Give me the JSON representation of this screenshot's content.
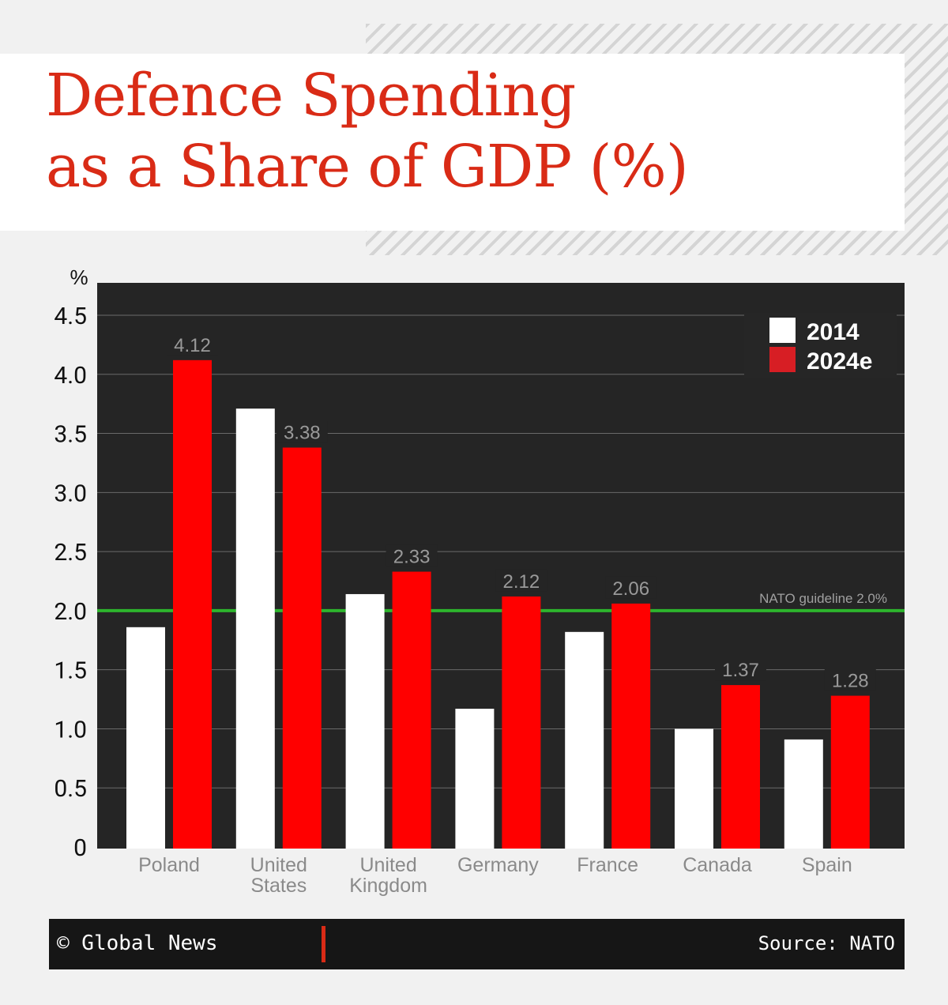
{
  "title_line1": "Defence Spending",
  "title_line2": "as a Share of GDP (%)",
  "chart_data": {
    "type": "bar",
    "categories": [
      "Poland",
      "United States",
      "United Kingdom",
      "Germany",
      "France",
      "Canada",
      "Spain"
    ],
    "category_lines": [
      [
        "Poland"
      ],
      [
        "United",
        "States"
      ],
      [
        "United",
        "Kingdom"
      ],
      [
        "Germany"
      ],
      [
        "France"
      ],
      [
        "Canada"
      ],
      [
        "Spain"
      ]
    ],
    "series": [
      {
        "name": "2014",
        "color": "#ffffff",
        "values": [
          1.86,
          3.71,
          2.14,
          1.17,
          1.82,
          1.0,
          0.91
        ],
        "labels": false
      },
      {
        "name": "2024e",
        "color": "#ff0000",
        "legend_color": "#d71e24",
        "values": [
          4.12,
          3.38,
          2.33,
          2.12,
          2.06,
          1.37,
          1.28
        ],
        "labels": true
      }
    ],
    "ylabel": "%",
    "ylim": [
      0,
      4.5
    ],
    "yticks": [
      "0",
      "0.5",
      "1.0",
      "1.5",
      "2.0",
      "2.5",
      "3.0",
      "3.5",
      "4.0",
      "4.5"
    ],
    "grid": true,
    "legend": "top-right",
    "reference_line": {
      "value": 2.0,
      "label": "NATO guideline 2.0%",
      "color": "#2db52d"
    },
    "background": "#252525"
  },
  "footer": {
    "brand": "© Global News",
    "source": "Source: NATO"
  }
}
